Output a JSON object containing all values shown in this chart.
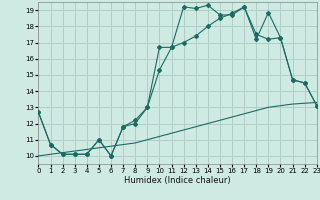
{
  "background_color": "#ceeae3",
  "grid_color": "#b0cec8",
  "line_color": "#1a6b60",
  "xlabel": "Humidex (Indice chaleur)",
  "xlim": [
    0,
    23
  ],
  "ylim": [
    9.5,
    19.5
  ],
  "yticks": [
    10,
    11,
    12,
    13,
    14,
    15,
    16,
    17,
    18,
    19
  ],
  "xticks": [
    0,
    1,
    2,
    3,
    4,
    5,
    6,
    7,
    8,
    9,
    10,
    11,
    12,
    13,
    14,
    15,
    16,
    17,
    18,
    19,
    20,
    21,
    22,
    23
  ],
  "line1_x": [
    0,
    1,
    2,
    3,
    4,
    5,
    6,
    7,
    8,
    9,
    10,
    11,
    12,
    13,
    14,
    15,
    16,
    17,
    18,
    19,
    20,
    21,
    22,
    23
  ],
  "line1_y": [
    12.7,
    10.7,
    10.1,
    10.1,
    10.1,
    11.0,
    10.0,
    11.8,
    12.2,
    13.0,
    16.7,
    16.7,
    19.2,
    19.1,
    19.3,
    18.7,
    18.7,
    19.2,
    17.2,
    18.85,
    17.3,
    14.7,
    14.5,
    13.1
  ],
  "line2_x": [
    0,
    1,
    2,
    3,
    4,
    5,
    6,
    7,
    8,
    9,
    10,
    11,
    12,
    13,
    14,
    15,
    16,
    17,
    18,
    19,
    20,
    21,
    22,
    23
  ],
  "line2_y": [
    12.7,
    10.7,
    10.1,
    10.1,
    10.1,
    11.0,
    10.0,
    11.8,
    12.0,
    13.0,
    15.3,
    16.7,
    17.0,
    17.4,
    18.0,
    18.5,
    18.8,
    19.2,
    17.5,
    17.2,
    17.3,
    14.7,
    14.5,
    13.1
  ],
  "line3_x": [
    0,
    1,
    2,
    3,
    4,
    5,
    6,
    7,
    8,
    9,
    10,
    11,
    12,
    13,
    14,
    15,
    16,
    17,
    18,
    19,
    20,
    21,
    22,
    23
  ],
  "line3_y": [
    10.0,
    10.1,
    10.2,
    10.3,
    10.4,
    10.5,
    10.6,
    10.7,
    10.8,
    11.0,
    11.2,
    11.4,
    11.6,
    11.8,
    12.0,
    12.2,
    12.4,
    12.6,
    12.8,
    13.0,
    13.1,
    13.2,
    13.25,
    13.3
  ],
  "marker": "D",
  "markersize": 2.0
}
